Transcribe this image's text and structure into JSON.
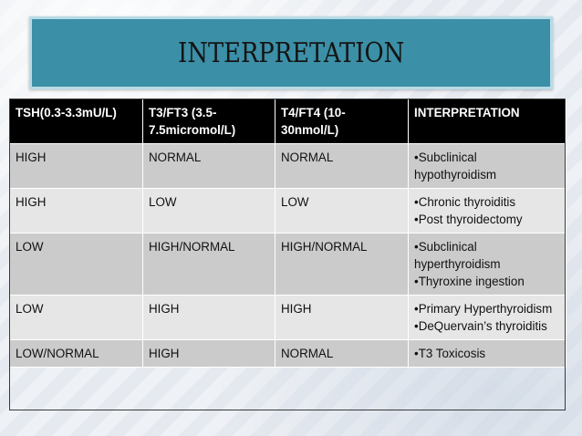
{
  "title": "INTERPRETATION",
  "headers": [
    "TSH(0.3-3.3mU/L)",
    "T3/FT3 (3.5-7.5micromol/L)",
    "T4/FT4 (10-30nmol/L)",
    "INTERPRETATION"
  ],
  "rows": [
    {
      "tsh": "HIGH",
      "t3": "NORMAL",
      "t4": "NORMAL",
      "interp": [
        "•Subclinical hypothyroidism"
      ]
    },
    {
      "tsh": "HIGH",
      "t3": "LOW",
      "t4": "LOW",
      "interp": [
        "•Chronic thyroiditis",
        "•Post thyroidectomy"
      ]
    },
    {
      "tsh": "LOW",
      "t3": "HIGH/NORMAL",
      "t4": "HIGH/NORMAL",
      "interp": [
        "•Subclinical hyperthyroidism",
        "•Thyroxine ingestion"
      ]
    },
    {
      "tsh": "LOW",
      "t3": "HIGH",
      "t4": "HIGH",
      "interp": [
        "•Primary Hyperthyroidism",
        "•DeQuervain’s thyroiditis"
      ]
    },
    {
      "tsh": "LOW/NORMAL",
      "t3": "HIGH",
      "t4": "NORMAL",
      "interp": [
        "•T3 Toxicosis"
      ]
    }
  ]
}
